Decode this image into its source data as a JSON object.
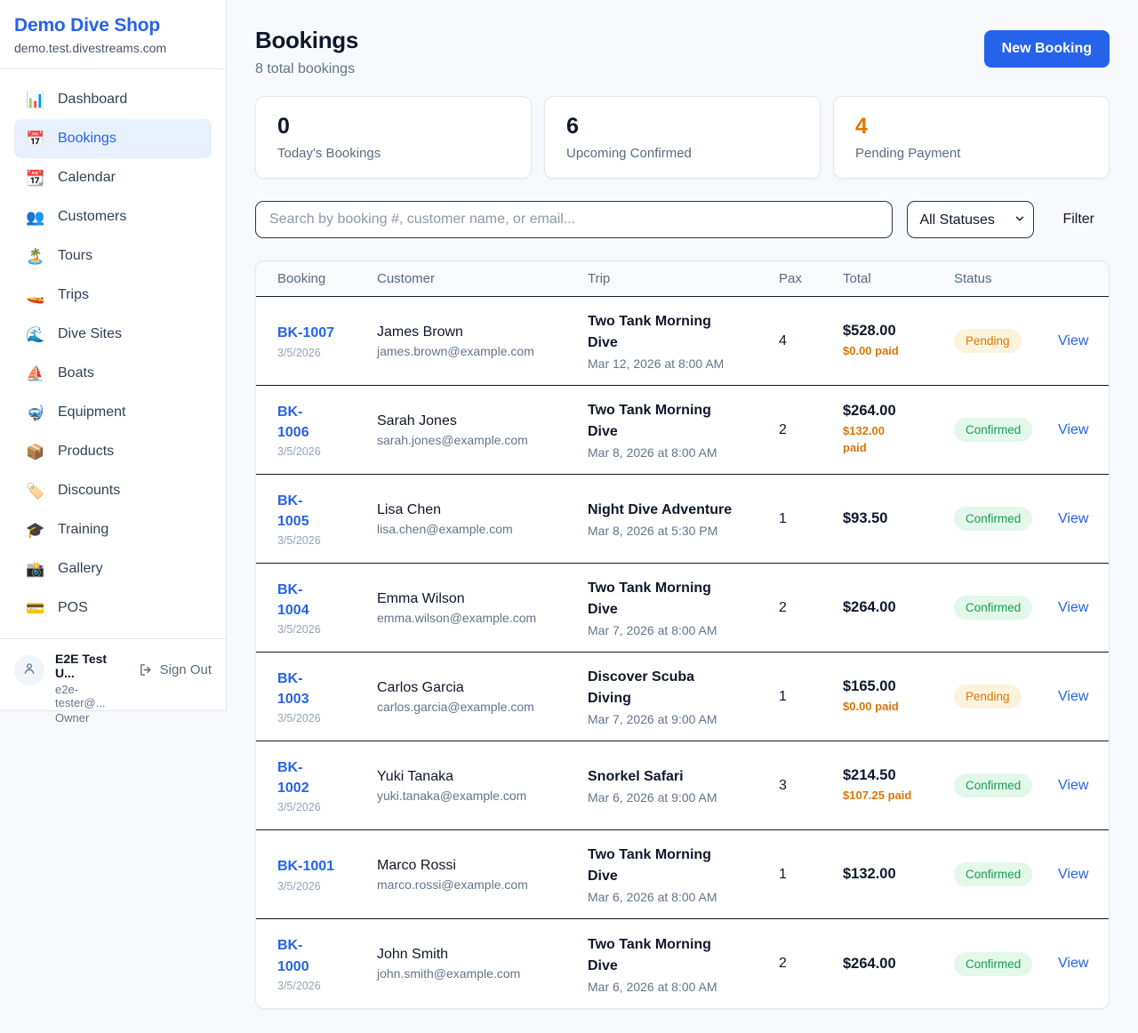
{
  "colors": {
    "accent_blue": "#2563EB",
    "pending_text": "#D97706",
    "pending_bg": "#FBF3DC",
    "confirmed_text": "#16A34A",
    "confirmed_bg": "#E3F7EB",
    "page_bg": "#F7F9FC",
    "divider_dark": "#121A28"
  },
  "sidebar": {
    "shop_name": "Demo Dive Shop",
    "shop_domain": "demo.test.divestreams.com",
    "items": [
      {
        "name": "dashboard",
        "icon": "📊",
        "icon_name": "bar-chart-icon",
        "label": "Dashboard",
        "active": false
      },
      {
        "name": "bookings",
        "icon": "📅",
        "icon_name": "calendar-icon",
        "label": "Bookings",
        "active": true
      },
      {
        "name": "calendar",
        "icon": "📆",
        "icon_name": "tear-calendar-icon",
        "label": "Calendar",
        "active": false
      },
      {
        "name": "customers",
        "icon": "👥",
        "icon_name": "people-icon",
        "label": "Customers",
        "active": false
      },
      {
        "name": "tours",
        "icon": "🏝️",
        "icon_name": "island-icon",
        "label": "Tours",
        "active": false
      },
      {
        "name": "trips",
        "icon": "🚤",
        "icon_name": "speedboat-icon",
        "label": "Trips",
        "active": false
      },
      {
        "name": "dive-sites",
        "icon": "🌊",
        "icon_name": "wave-icon",
        "label": "Dive Sites",
        "active": false
      },
      {
        "name": "boats",
        "icon": "⛵",
        "icon_name": "sailboat-icon",
        "label": "Boats",
        "active": false
      },
      {
        "name": "equipment",
        "icon": "🤿",
        "icon_name": "dive-mask-icon",
        "label": "Equipment",
        "active": false
      },
      {
        "name": "products",
        "icon": "📦",
        "icon_name": "package-icon",
        "label": "Products",
        "active": false
      },
      {
        "name": "discounts",
        "icon": "🏷️",
        "icon_name": "tag-icon",
        "label": "Discounts",
        "active": false
      },
      {
        "name": "training",
        "icon": "🎓",
        "icon_name": "grad-cap-icon",
        "label": "Training",
        "active": false
      },
      {
        "name": "gallery",
        "icon": "📸",
        "icon_name": "camera-icon",
        "label": "Gallery",
        "active": false
      },
      {
        "name": "pos",
        "icon": "💳",
        "icon_name": "credit-card-icon",
        "label": "POS",
        "active": false
      }
    ],
    "user": {
      "name": "E2E Test U...",
      "email": "e2e-tester@...",
      "role": "Owner",
      "sign_out_label": "Sign Out"
    }
  },
  "header": {
    "title": "Bookings",
    "subtitle": "8 total bookings",
    "new_booking_label": "New Booking"
  },
  "stats": [
    {
      "value": "0",
      "label": "Today's Bookings",
      "highlight": false
    },
    {
      "value": "6",
      "label": "Upcoming Confirmed",
      "highlight": false
    },
    {
      "value": "4",
      "label": "Pending Payment",
      "highlight": true
    }
  ],
  "filters": {
    "search_placeholder": "Search by booking #, customer name, or email...",
    "status_selected": "All Statuses",
    "filter_label": "Filter"
  },
  "table": {
    "columns": [
      "Booking",
      "Customer",
      "Trip",
      "Pax",
      "Total",
      "Status",
      ""
    ],
    "view_label": "View",
    "rows": [
      {
        "id_lines": [
          "BK-1007"
        ],
        "booked_date": "3/5/2026",
        "customer_name": "James Brown",
        "customer_email": "james.brown@example.com",
        "trip_lines": [
          "Two Tank Morning",
          "Dive"
        ],
        "trip_datetime": "Mar 12, 2026 at 8:00 AM",
        "pax": "4",
        "total": "$528.00",
        "paid_lines": [
          "$0.00 paid"
        ],
        "status": "Pending",
        "status_kind": "pending"
      },
      {
        "id_lines": [
          "BK-",
          "1006"
        ],
        "booked_date": "3/5/2026",
        "customer_name": "Sarah Jones",
        "customer_email": "sarah.jones@example.com",
        "trip_lines": [
          "Two Tank Morning",
          "Dive"
        ],
        "trip_datetime": "Mar 8, 2026 at 8:00 AM",
        "pax": "2",
        "total": "$264.00",
        "paid_lines": [
          "$132.00",
          "paid"
        ],
        "status": "Confirmed",
        "status_kind": "confirmed"
      },
      {
        "id_lines": [
          "BK-",
          "1005"
        ],
        "booked_date": "3/5/2026",
        "customer_name": "Lisa Chen",
        "customer_email": "lisa.chen@example.com",
        "trip_lines": [
          "Night Dive Adventure"
        ],
        "trip_datetime": "Mar 8, 2026 at 5:30 PM",
        "pax": "1",
        "total": "$93.50",
        "paid_lines": [],
        "status": "Confirmed",
        "status_kind": "confirmed"
      },
      {
        "id_lines": [
          "BK-",
          "1004"
        ],
        "booked_date": "3/5/2026",
        "customer_name": "Emma Wilson",
        "customer_email": "emma.wilson@example.com",
        "trip_lines": [
          "Two Tank Morning",
          "Dive"
        ],
        "trip_datetime": "Mar 7, 2026 at 8:00 AM",
        "pax": "2",
        "total": "$264.00",
        "paid_lines": [],
        "status": "Confirmed",
        "status_kind": "confirmed"
      },
      {
        "id_lines": [
          "BK-",
          "1003"
        ],
        "booked_date": "3/5/2026",
        "customer_name": "Carlos Garcia",
        "customer_email": "carlos.garcia@example.com",
        "trip_lines": [
          "Discover Scuba",
          "Diving"
        ],
        "trip_datetime": "Mar 7, 2026 at 9:00 AM",
        "pax": "1",
        "total": "$165.00",
        "paid_lines": [
          "$0.00 paid"
        ],
        "status": "Pending",
        "status_kind": "pending"
      },
      {
        "id_lines": [
          "BK-",
          "1002"
        ],
        "booked_date": "3/5/2026",
        "customer_name": "Yuki Tanaka",
        "customer_email": "yuki.tanaka@example.com",
        "trip_lines": [
          "Snorkel Safari"
        ],
        "trip_datetime": "Mar 6, 2026 at 9:00 AM",
        "pax": "3",
        "total": "$214.50",
        "paid_lines": [
          "$107.25 paid"
        ],
        "status": "Confirmed",
        "status_kind": "confirmed"
      },
      {
        "id_lines": [
          "BK-1001"
        ],
        "booked_date": "3/5/2026",
        "customer_name": "Marco Rossi",
        "customer_email": "marco.rossi@example.com",
        "trip_lines": [
          "Two Tank Morning",
          "Dive"
        ],
        "trip_datetime": "Mar 6, 2026 at 8:00 AM",
        "pax": "1",
        "total": "$132.00",
        "paid_lines": [],
        "status": "Confirmed",
        "status_kind": "confirmed"
      },
      {
        "id_lines": [
          "BK-",
          "1000"
        ],
        "booked_date": "3/5/2026",
        "customer_name": "John Smith",
        "customer_email": "john.smith@example.com",
        "trip_lines": [
          "Two Tank Morning",
          "Dive"
        ],
        "trip_datetime": "Mar 6, 2026 at 8:00 AM",
        "pax": "2",
        "total": "$264.00",
        "paid_lines": [],
        "status": "Confirmed",
        "status_kind": "confirmed"
      }
    ]
  }
}
